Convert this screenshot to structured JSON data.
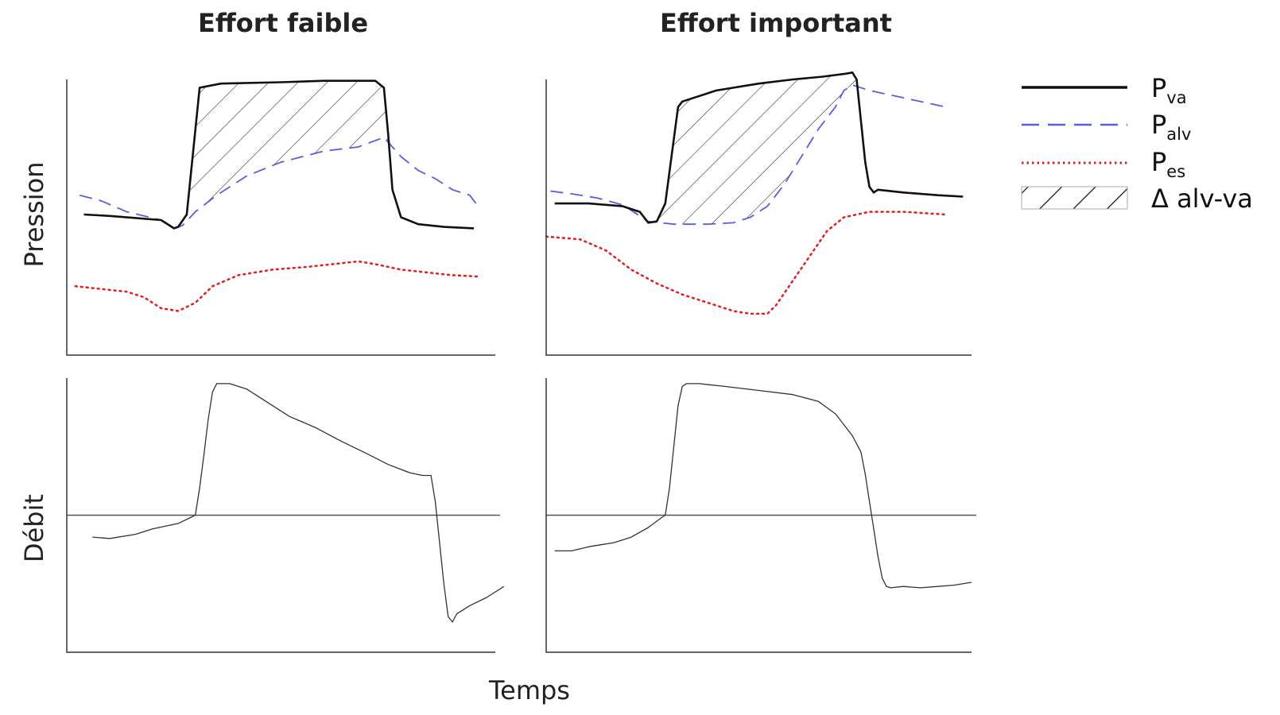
{
  "chart_data": {
    "type": "line",
    "titles": [
      "Effort faible",
      "Effort important"
    ],
    "xlabel": "Temps",
    "ylabel_top": "Pression",
    "ylabel_bottom": "Débit",
    "x_domain": [
      0,
      100
    ],
    "pressure_ylim": [
      0,
      100
    ],
    "flow_ylim": [
      -50,
      50
    ],
    "legend": [
      {
        "key": "pva",
        "main": "P",
        "sub": "va",
        "style": "solid",
        "color": "#111111"
      },
      {
        "key": "palv",
        "main": "P",
        "sub": "alv",
        "style": "dashed",
        "color": "#5c5ce0"
      },
      {
        "key": "pes",
        "main": "P",
        "sub": "es",
        "style": "dotted",
        "color": "#e02020"
      },
      {
        "key": "delta",
        "main": "Δ alv-va",
        "sub": "",
        "style": "hatch",
        "color": "#222222"
      }
    ],
    "panels": [
      {
        "name": "low-effort",
        "pressure": {
          "pva": [
            [
              4,
              51
            ],
            [
              10,
              50.5
            ],
            [
              22,
              49
            ],
            [
              25,
              46
            ],
            [
              26,
              46.5
            ],
            [
              28,
              51
            ],
            [
              31,
              97
            ],
            [
              36,
              98.5
            ],
            [
              50,
              99
            ],
            [
              60,
              99.5
            ],
            [
              72,
              99.5
            ],
            [
              74,
              97
            ],
            [
              75,
              80
            ],
            [
              76,
              60
            ],
            [
              78,
              50
            ],
            [
              82,
              47.5
            ],
            [
              88,
              46.5
            ],
            [
              95,
              46
            ]
          ],
          "palv": [
            [
              3,
              58
            ],
            [
              8,
              56
            ],
            [
              14,
              52
            ],
            [
              22,
              49
            ],
            [
              25,
              46
            ],
            [
              27,
              47
            ],
            [
              30,
              52
            ],
            [
              35,
              58
            ],
            [
              42,
              65
            ],
            [
              50,
              70
            ],
            [
              60,
              74
            ],
            [
              68,
              75.5
            ],
            [
              74,
              79
            ],
            [
              78,
              72
            ],
            [
              82,
              67
            ],
            [
              86,
              64
            ],
            [
              90,
              60
            ],
            [
              94,
              58
            ],
            [
              96,
              54
            ]
          ],
          "pes": [
            [
              2,
              25
            ],
            [
              8,
              24
            ],
            [
              14,
              23
            ],
            [
              18,
              21
            ],
            [
              22,
              17
            ],
            [
              26,
              16
            ],
            [
              30,
              19
            ],
            [
              34,
              25
            ],
            [
              40,
              29
            ],
            [
              48,
              31
            ],
            [
              56,
              32
            ],
            [
              62,
              33
            ],
            [
              68,
              34
            ],
            [
              72,
              33
            ],
            [
              78,
              31
            ],
            [
              84,
              30
            ],
            [
              90,
              29
            ],
            [
              96,
              28.5
            ]
          ]
        },
        "flow": [
          [
            6,
            -8
          ],
          [
            10,
            -8.5
          ],
          [
            16,
            -7
          ],
          [
            20,
            -5
          ],
          [
            26,
            -3
          ],
          [
            30,
            0
          ],
          [
            31,
            10
          ],
          [
            32,
            22
          ],
          [
            33,
            35
          ],
          [
            34,
            45
          ],
          [
            35,
            48
          ],
          [
            38,
            48
          ],
          [
            42,
            46
          ],
          [
            46,
            42
          ],
          [
            52,
            36
          ],
          [
            58,
            32
          ],
          [
            64,
            27
          ],
          [
            70,
            22.5
          ],
          [
            75,
            18.5
          ],
          [
            80,
            15.5
          ],
          [
            83,
            14.5
          ],
          [
            85,
            14.5
          ],
          [
            86,
            5
          ],
          [
            87,
            -10
          ],
          [
            88,
            -25
          ],
          [
            89,
            -37
          ],
          [
            90,
            -39
          ],
          [
            91,
            -36
          ],
          [
            94,
            -33
          ],
          [
            98,
            -30
          ],
          [
            102,
            -26
          ]
        ]
      },
      {
        "name": "high-effort",
        "pressure": {
          "pva": [
            [
              2,
              55
            ],
            [
              10,
              55
            ],
            [
              18,
              54
            ],
            [
              22,
              52
            ],
            [
              24,
              48
            ],
            [
              26,
              48.5
            ],
            [
              28,
              55
            ],
            [
              31,
              90
            ],
            [
              32,
              92
            ],
            [
              34,
              93
            ],
            [
              40,
              96
            ],
            [
              50,
              98.5
            ],
            [
              58,
              100
            ],
            [
              65,
              101
            ],
            [
              70,
              102
            ],
            [
              72,
              102.5
            ],
            [
              73,
              100
            ],
            [
              74,
              85
            ],
            [
              75,
              70
            ],
            [
              76,
              61
            ],
            [
              77,
              59
            ],
            [
              78,
              60
            ],
            [
              84,
              59
            ],
            [
              92,
              58
            ],
            [
              98,
              57.5
            ]
          ],
          "palv": [
            [
              1,
              59.5
            ],
            [
              6,
              58.5
            ],
            [
              12,
              57
            ],
            [
              18,
              54.5
            ],
            [
              24,
              48.5
            ],
            [
              30,
              47.5
            ],
            [
              38,
              47.5
            ],
            [
              44,
              48
            ],
            [
              48,
              50
            ],
            [
              52,
              54
            ],
            [
              56,
              62
            ],
            [
              60,
              72
            ],
            [
              64,
              82
            ],
            [
              68,
              90
            ],
            [
              70,
              96
            ],
            [
              72,
              98
            ],
            [
              76,
              96
            ],
            [
              82,
              94
            ],
            [
              88,
              92
            ],
            [
              94,
              90
            ]
          ],
          "pes": [
            [
              0,
              43
            ],
            [
              8,
              42
            ],
            [
              14,
              38
            ],
            [
              20,
              31
            ],
            [
              26,
              26
            ],
            [
              32,
              22
            ],
            [
              38,
              19
            ],
            [
              44,
              16
            ],
            [
              48,
              15
            ],
            [
              52,
              15
            ],
            [
              54,
              18
            ],
            [
              58,
              27
            ],
            [
              62,
              36
            ],
            [
              66,
              45
            ],
            [
              70,
              50
            ],
            [
              76,
              52
            ],
            [
              84,
              52
            ],
            [
              94,
              51
            ]
          ]
        },
        "flow": [
          [
            2,
            -13
          ],
          [
            6,
            -13
          ],
          [
            10,
            -11.5
          ],
          [
            16,
            -10
          ],
          [
            20,
            -8
          ],
          [
            24,
            -4.5
          ],
          [
            27,
            -1
          ],
          [
            28,
            0
          ],
          [
            29,
            10
          ],
          [
            30,
            25
          ],
          [
            31,
            40
          ],
          [
            32,
            47
          ],
          [
            33,
            48
          ],
          [
            36,
            48
          ],
          [
            42,
            47
          ],
          [
            50,
            45.5
          ],
          [
            58,
            44
          ],
          [
            64,
            41.5
          ],
          [
            68,
            37
          ],
          [
            72,
            29
          ],
          [
            74,
            23
          ],
          [
            75,
            15
          ],
          [
            76,
            5
          ],
          [
            77,
            -5
          ],
          [
            78,
            -15
          ],
          [
            79,
            -23
          ],
          [
            80,
            -26
          ],
          [
            81,
            -26.5
          ],
          [
            84,
            -26
          ],
          [
            88,
            -26.5
          ],
          [
            92,
            -26
          ],
          [
            96,
            -25.5
          ],
          [
            100,
            -24.5
          ]
        ]
      }
    ]
  }
}
